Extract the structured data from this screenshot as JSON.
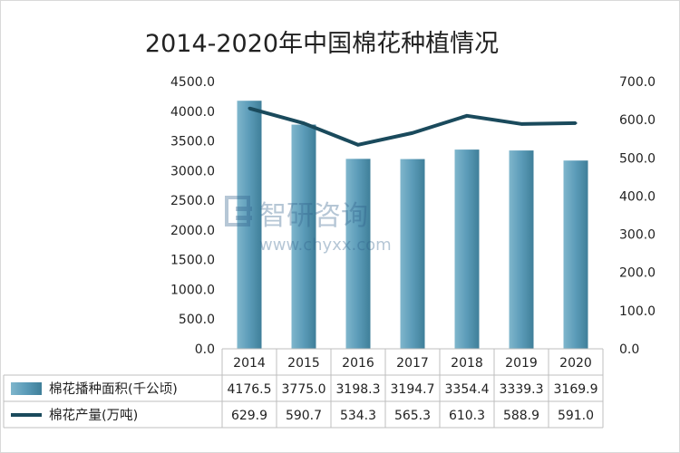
{
  "chart_data": {
    "type": "bar+line",
    "title": "2014-2020年中国棉花种植情况",
    "categories": [
      "2014",
      "2015",
      "2016",
      "2017",
      "2018",
      "2019",
      "2020"
    ],
    "series": [
      {
        "name": "棉花播种面积(千公顷)",
        "type": "bar",
        "axis": "left",
        "values": [
          4176.5,
          3775.0,
          3198.3,
          3194.7,
          3354.4,
          3339.3,
          3169.9
        ],
        "labels": [
          "4176.5",
          "3775.0",
          "3198.3",
          "3194.7",
          "3354.4",
          "3339.3",
          "3169.9"
        ],
        "color": "#5b9bb8"
      },
      {
        "name": "棉花产量(万吨)",
        "type": "line",
        "axis": "right",
        "values": [
          629.9,
          590.7,
          534.3,
          565.3,
          610.3,
          588.9,
          591.0
        ],
        "labels": [
          "629.9",
          "590.7",
          "534.3",
          "565.3",
          "610.3",
          "588.9",
          "591.0"
        ],
        "color": "#1a4a5c"
      }
    ],
    "y_left": {
      "range": [
        0,
        4500
      ],
      "ticks": [
        "0.0",
        "500.0",
        "1000.0",
        "1500.0",
        "2000.0",
        "2500.0",
        "3000.0",
        "3500.0",
        "4000.0",
        "4500.0"
      ]
    },
    "y_right": {
      "range": [
        0,
        700
      ],
      "ticks": [
        "0.0",
        "100.0",
        "200.0",
        "300.0",
        "400.0",
        "500.0",
        "600.0",
        "700.0"
      ]
    },
    "legend": "data-table",
    "grid": false
  },
  "watermark": {
    "name": "智研咨询",
    "url": "www.chyxx.com"
  }
}
